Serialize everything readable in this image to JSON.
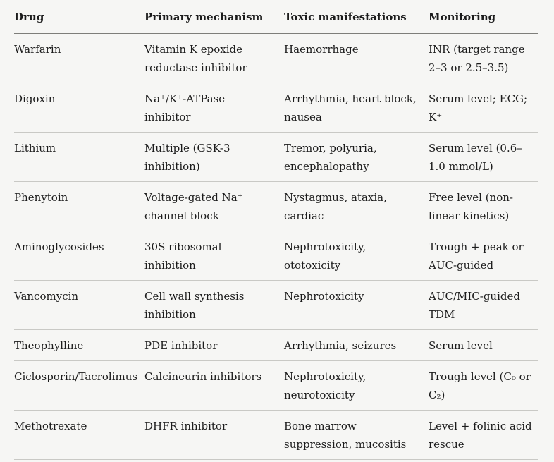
{
  "colors": {
    "page_background": "#f6f6f4",
    "text": "#1c1c1c",
    "header_rule": "#7e7e7a",
    "row_rule": "#c9c9c5"
  },
  "table": {
    "headers": [
      "Drug",
      "Primary mechanism",
      "Toxic manifestations",
      "Monitoring"
    ],
    "rows": [
      {
        "drug": "Warfarin",
        "mechanism": "Vitamin K epoxide reductase inhibitor",
        "toxic": "Haemorrhage",
        "monitoring": "INR (target range 2–3 or 2.5–3.5)"
      },
      {
        "drug": "Digoxin",
        "mechanism": "Na⁺/K⁺-ATPase inhibitor",
        "toxic": "Arrhythmia, heart block, nausea",
        "monitoring": "Serum level; ECG; K⁺"
      },
      {
        "drug": "Lithium",
        "mechanism": "Multiple (GSK-3 inhibition)",
        "toxic": "Tremor, polyuria, encephalopathy",
        "monitoring": "Serum level (0.6–1.0 mmol/L)"
      },
      {
        "drug": "Phenytoin",
        "mechanism": "Voltage-gated Na⁺ channel block",
        "toxic": "Nystagmus, ataxia, cardiac",
        "monitoring": "Free level (non-linear kinetics)"
      },
      {
        "drug": "Aminoglycosides",
        "mechanism": "30S ribosomal inhibition",
        "toxic": "Nephrotoxicity, ototoxicity",
        "monitoring": "Trough + peak or AUC-guided"
      },
      {
        "drug": "Vancomycin",
        "mechanism": "Cell wall synthesis inhibition",
        "toxic": "Nephrotoxicity",
        "monitoring": "AUC/MIC-guided TDM"
      },
      {
        "drug": "Theophylline",
        "mechanism": "PDE inhibitor",
        "toxic": "Arrhythmia, seizures",
        "monitoring": "Serum level"
      },
      {
        "drug": "Ciclosporin/Tacrolimus",
        "mechanism": "Calcineurin inhibitors",
        "toxic": "Nephrotoxicity, neurotoxicity",
        "monitoring": "Trough level (C₀ or C₂)"
      },
      {
        "drug": "Methotrexate",
        "mechanism": "DHFR inhibitor",
        "toxic": "Bone marrow suppression, mucositis",
        "monitoring": "Level + folinic acid rescue"
      }
    ]
  }
}
